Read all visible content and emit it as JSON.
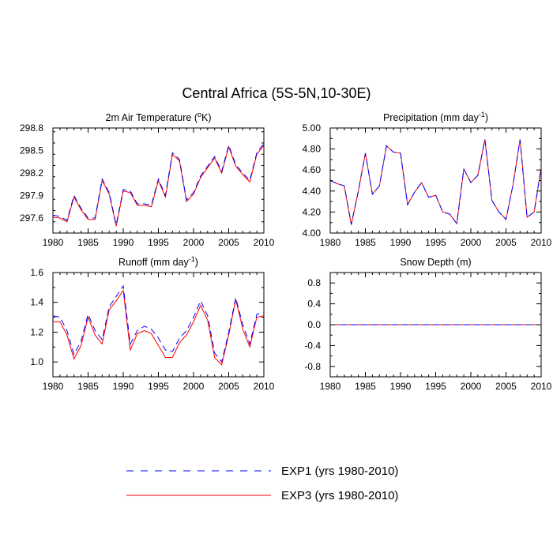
{
  "figure": {
    "title": "Central Africa (5S-5N,10-30E)"
  },
  "legend": {
    "items": [
      {
        "label": "EXP1 (yrs 1980-2010)",
        "color": "#0000ff",
        "dash": "dashed"
      },
      {
        "label": "EXP3 (yrs 1980-2010)",
        "color": "#ff0000",
        "dash": "solid"
      }
    ],
    "placement": "bottom-center"
  },
  "chart_data": [
    {
      "type": "line",
      "title": "2m Air Temperature (",
      "title_sup": "o",
      "title_suffix": "K)",
      "xlim": [
        1980,
        2010
      ],
      "ylim": [
        297.4,
        298.8
      ],
      "x_ticks": [
        1980,
        1985,
        1990,
        1995,
        2000,
        2005,
        2010
      ],
      "y_ticks": [
        297.6,
        297.9,
        298.2,
        298.5,
        298.8
      ],
      "y_tick_labels": [
        "297.6",
        "297.9",
        "298.2",
        "298.5",
        "298.8"
      ],
      "x": [
        1980,
        1981,
        1982,
        1983,
        1984,
        1985,
        1986,
        1987,
        1988,
        1989,
        1990,
        1991,
        1992,
        1993,
        1994,
        1995,
        1996,
        1997,
        1998,
        1999,
        2000,
        2001,
        2002,
        2003,
        2004,
        2005,
        2006,
        2007,
        2008,
        2009,
        2010
      ],
      "series": [
        {
          "name": "EXP1",
          "color": "#0000ff",
          "dash": "dashed",
          "values": [
            297.64,
            297.62,
            297.57,
            297.9,
            297.73,
            297.6,
            297.6,
            298.12,
            297.94,
            297.51,
            297.98,
            297.96,
            297.79,
            297.79,
            297.77,
            298.12,
            297.9,
            298.47,
            298.38,
            297.84,
            297.94,
            298.16,
            298.29,
            298.42,
            298.22,
            298.57,
            298.31,
            298.2,
            298.1,
            298.47,
            298.59
          ]
        },
        {
          "name": "EXP3",
          "color": "#ff0000",
          "dash": "solid",
          "values": [
            297.61,
            297.6,
            297.55,
            297.88,
            297.71,
            297.58,
            297.58,
            298.1,
            297.92,
            297.49,
            297.96,
            297.94,
            297.77,
            297.77,
            297.75,
            298.1,
            297.88,
            298.45,
            298.36,
            297.82,
            297.92,
            298.14,
            298.27,
            298.4,
            298.2,
            298.55,
            298.29,
            298.18,
            298.08,
            298.45,
            298.57
          ]
        }
      ]
    },
    {
      "type": "line",
      "title": "Precipitation (mm day",
      "title_sup": "-1",
      "title_suffix": ")",
      "xlim": [
        1980,
        2010
      ],
      "ylim": [
        4.0,
        5.0
      ],
      "x_ticks": [
        1980,
        1985,
        1990,
        1995,
        2000,
        2005,
        2010
      ],
      "y_ticks": [
        4.0,
        4.2,
        4.4,
        4.6,
        4.8,
        5.0
      ],
      "y_tick_labels": [
        "4.00",
        "4.20",
        "4.40",
        "4.60",
        "4.80",
        "5.00"
      ],
      "x": [
        1980,
        1981,
        1982,
        1983,
        1984,
        1985,
        1986,
        1987,
        1988,
        1989,
        1990,
        1991,
        1992,
        1993,
        1994,
        1995,
        1996,
        1997,
        1998,
        1999,
        2000,
        2001,
        2002,
        2003,
        2004,
        2005,
        2006,
        2007,
        2008,
        2009,
        2010
      ],
      "series": [
        {
          "name": "EXP1",
          "color": "#0000ff",
          "dash": "dashed",
          "values": [
            4.5,
            4.47,
            4.45,
            4.08,
            4.4,
            4.76,
            4.37,
            4.45,
            4.83,
            4.77,
            4.76,
            4.27,
            4.39,
            4.48,
            4.34,
            4.36,
            4.2,
            4.18,
            4.09,
            4.61,
            4.48,
            4.55,
            4.89,
            4.31,
            4.2,
            4.13,
            4.46,
            4.89,
            4.15,
            4.2,
            4.62
          ]
        },
        {
          "name": "EXP3",
          "color": "#ff0000",
          "dash": "solid",
          "values": [
            4.5,
            4.47,
            4.45,
            4.08,
            4.4,
            4.76,
            4.37,
            4.45,
            4.83,
            4.77,
            4.76,
            4.27,
            4.39,
            4.48,
            4.34,
            4.36,
            4.2,
            4.18,
            4.09,
            4.61,
            4.48,
            4.55,
            4.89,
            4.31,
            4.2,
            4.13,
            4.46,
            4.89,
            4.15,
            4.2,
            4.62
          ]
        }
      ]
    },
    {
      "type": "line",
      "title": "Runoff (mm day",
      "title_sup": "-1",
      "title_suffix": ")",
      "xlim": [
        1980,
        2010
      ],
      "ylim": [
        0.9,
        1.6
      ],
      "x_ticks": [
        1980,
        1985,
        1990,
        1995,
        2000,
        2005,
        2010
      ],
      "y_ticks": [
        1.0,
        1.2,
        1.4,
        1.6
      ],
      "y_tick_labels": [
        "1.0",
        "1.2",
        "1.4",
        "1.6"
      ],
      "x": [
        1980,
        1981,
        1982,
        1983,
        1984,
        1985,
        1986,
        1987,
        1988,
        1989,
        1990,
        1991,
        1992,
        1993,
        1994,
        1995,
        1996,
        1997,
        1998,
        1999,
        2000,
        2001,
        2002,
        2003,
        2004,
        2005,
        2006,
        2007,
        2008,
        2009,
        2010
      ],
      "series": [
        {
          "name": "EXP1",
          "color": "#0000ff",
          "dash": "dashed",
          "values": [
            1.31,
            1.3,
            1.21,
            1.05,
            1.14,
            1.32,
            1.21,
            1.15,
            1.37,
            1.44,
            1.51,
            1.12,
            1.21,
            1.24,
            1.22,
            1.16,
            1.08,
            1.07,
            1.16,
            1.21,
            1.3,
            1.41,
            1.31,
            1.06,
            1.0,
            1.2,
            1.43,
            1.25,
            1.12,
            1.32,
            1.33
          ]
        },
        {
          "name": "EXP3",
          "color": "#ff0000",
          "dash": "solid",
          "values": [
            1.27,
            1.27,
            1.18,
            1.02,
            1.11,
            1.3,
            1.18,
            1.12,
            1.35,
            1.41,
            1.48,
            1.08,
            1.19,
            1.21,
            1.19,
            1.11,
            1.03,
            1.03,
            1.13,
            1.18,
            1.27,
            1.38,
            1.28,
            1.03,
            0.98,
            1.18,
            1.42,
            1.22,
            1.1,
            1.3,
            1.31
          ]
        }
      ]
    },
    {
      "type": "line",
      "title": "Snow Depth (m)",
      "title_sup": "",
      "title_suffix": "",
      "xlim": [
        1980,
        2010
      ],
      "ylim": [
        -1.0,
        1.0
      ],
      "x_ticks": [
        1980,
        1985,
        1990,
        1995,
        2000,
        2005,
        2010
      ],
      "y_ticks": [
        -0.8,
        -0.4,
        0.0,
        0.4,
        0.8
      ],
      "y_tick_labels": [
        "-0.8",
        "-0.4",
        "0.0",
        "0.4",
        "0.8"
      ],
      "x": [
        1980,
        2010
      ],
      "series": [
        {
          "name": "EXP1",
          "color": "#0000ff",
          "dash": "dashed",
          "values": [
            0.0,
            0.0
          ]
        },
        {
          "name": "EXP3",
          "color": "#ff0000",
          "dash": "solid",
          "values": [
            0.0,
            0.0
          ]
        }
      ]
    }
  ]
}
